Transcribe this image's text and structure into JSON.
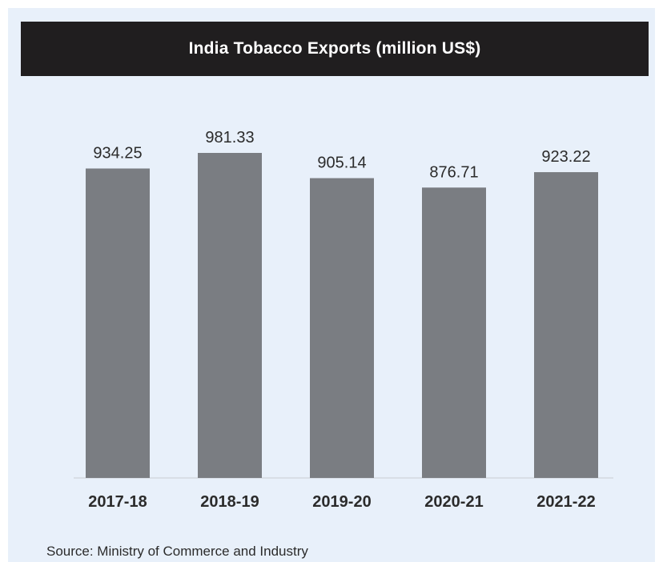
{
  "chart_data": {
    "type": "bar",
    "title": "India Tobacco Exports (million US$)",
    "categories": [
      "2017-18",
      "2018-19",
      "2019-20",
      "2020-21",
      "2021-22"
    ],
    "values": [
      934.25,
      981.33,
      905.14,
      876.71,
      923.22
    ],
    "value_labels": [
      "934.25",
      "981.33",
      "905.14",
      "876.71",
      "923.22"
    ],
    "xlabel": "",
    "ylabel": "",
    "ylim": [
      0,
      981.33
    ],
    "grid": false,
    "legend": "none",
    "bar_color": "#7a7d82",
    "background_color": "#e8f0fa",
    "title_background_color": "#201e1f"
  },
  "source": "Source: Ministry of Commerce and Industry"
}
